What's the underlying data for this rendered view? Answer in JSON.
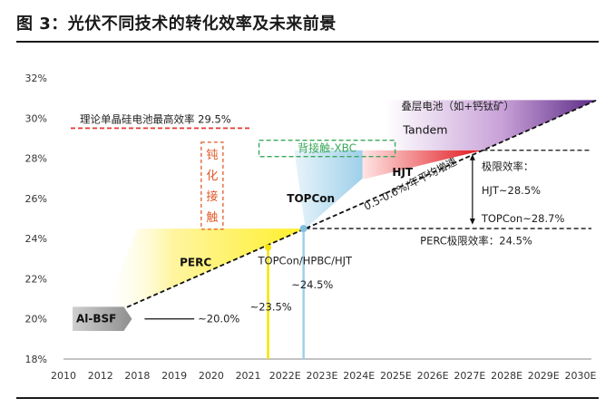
{
  "title": "图 3：光伏不同技术的转化效率及未来前景",
  "chart_data": {
    "type": "area",
    "title": "图 3：光伏不同技术的转化效率及未来前景",
    "xlabel": "",
    "ylabel": "",
    "ylim": [
      18,
      32
    ],
    "x_categories": [
      "2010",
      "2012",
      "2018",
      "2019",
      "2020",
      "2021",
      "2022E",
      "2023E",
      "2024E",
      "2025E",
      "2026E",
      "2027E",
      "2028E",
      "2029E",
      "2030E"
    ],
    "y_ticks": [
      "18%",
      "20%",
      "22%",
      "24%",
      "26%",
      "28%",
      "30%",
      "32%"
    ],
    "trend_line": {
      "x": [
        "2012",
        "2030E"
      ],
      "y": [
        20.0,
        30.9
      ]
    },
    "technologies": [
      {
        "name": "Al-BSF",
        "efficiency": 20.0,
        "label": "~20.0%"
      },
      {
        "name": "PERC",
        "efficiency": 23.5,
        "label": "~23.5%",
        "limit_label": "PERC极限效率：24.5%",
        "limit": 24.5
      },
      {
        "name": "TOPCon/HPBC/HJT",
        "efficiency": 24.5,
        "label": "~24.5%"
      },
      {
        "name": "TOPCon",
        "limit": 28.7
      },
      {
        "name": "HJT",
        "limit": 28.5
      },
      {
        "name": "Tandem",
        "note": "叠层电池（如+钙钛矿）"
      }
    ],
    "annotations": {
      "theory_limit": "理论单晶硅电池最高效率 29.5%",
      "passivation": [
        "钝",
        "化",
        "接",
        "触"
      ],
      "back_contact": "背接触-XBC",
      "growth_rate": "0.5-0.6%/年平均增速",
      "limit_title": "极限效率：",
      "hjt_limit": "HJT~28.5%",
      "topcon_limit": "TOPCon~28.7%",
      "perc_limit": "PERC极限效率：24.5%",
      "tandem_cn": "叠层电池（如+钙钛矿）",
      "tandem_en": "Tandem",
      "hjt": "HJT",
      "topcon": "TOPCon",
      "perc": "PERC",
      "albsf": "Al-BSF",
      "albsf_val": "~20.0%",
      "perc_val": "~23.5%",
      "topcon_group": "TOPCon/HPBC/HJT",
      "topcon_group_val": "~24.5%"
    },
    "colors": {
      "perc": "#ffef2a",
      "topcon": "#bfe0f0",
      "hjt": "#e53935",
      "tandem": "#7b3f98",
      "albsf": "#a0a0a0",
      "theory": "#e53935",
      "passivation": "#e05a2a",
      "back_contact": "#3aa85a"
    }
  }
}
